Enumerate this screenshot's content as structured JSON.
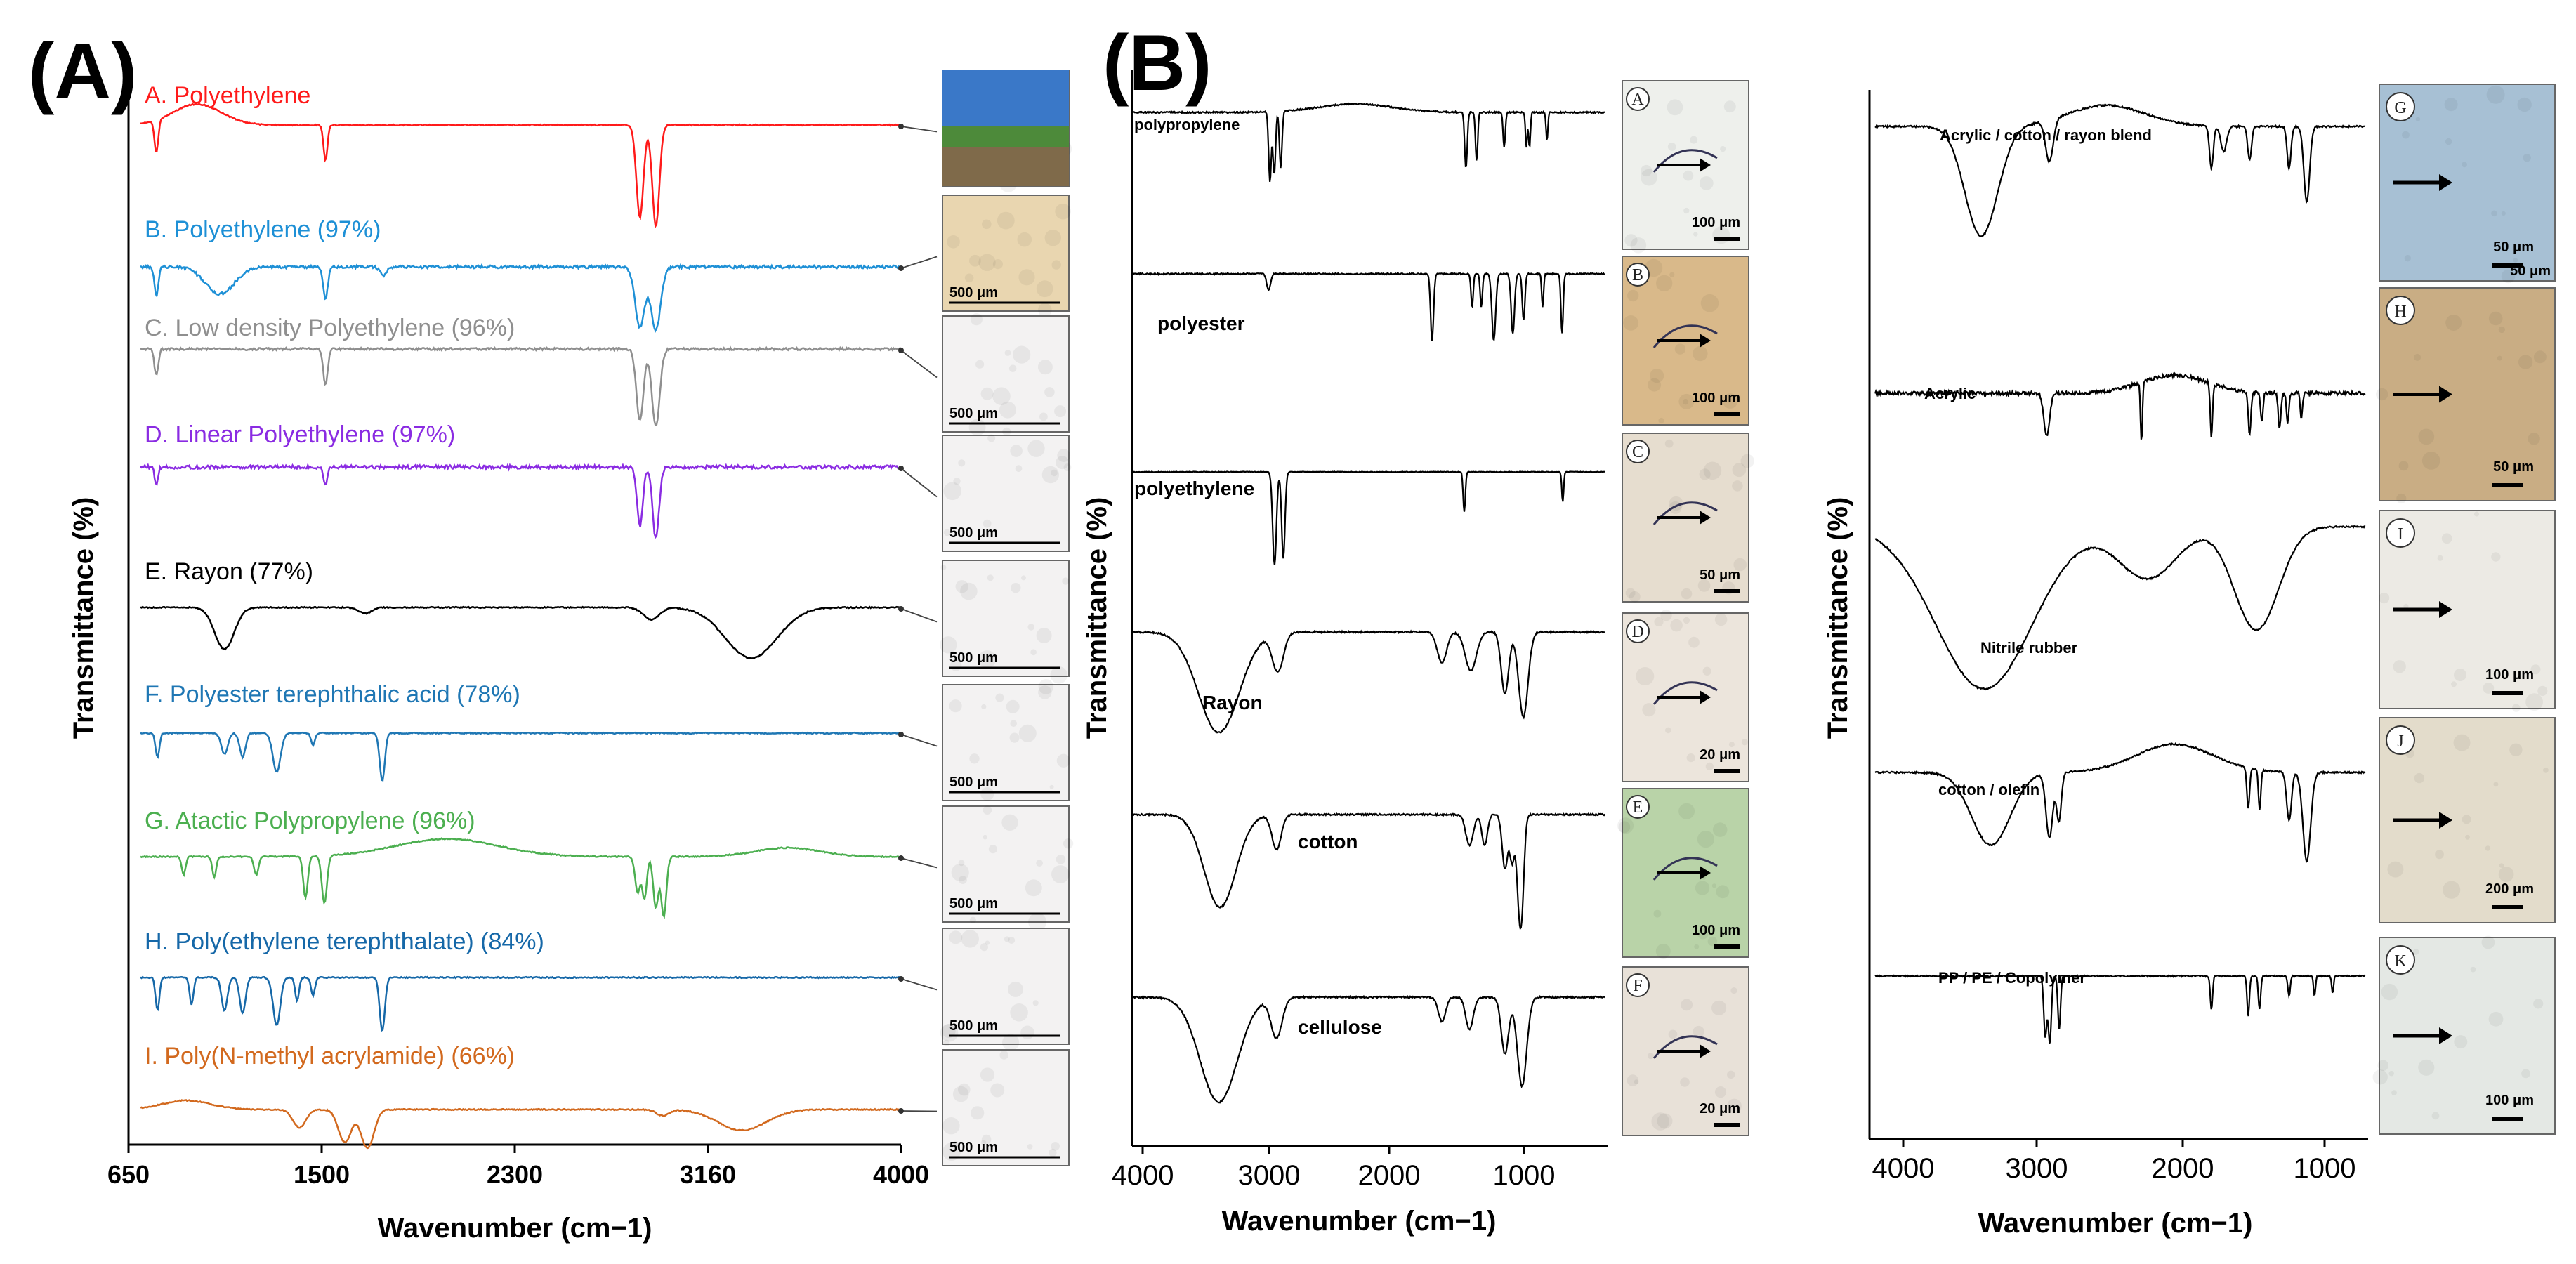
{
  "chart_data": [
    {
      "panel": "(A)",
      "type": "line",
      "xlabel": "Wavenumber (cm−1)",
      "ylabel": "Transmittance (%)",
      "xlim": [
        650,
        4000
      ],
      "x_axis_reversed": false,
      "tick_labels": [
        "650",
        "1500",
        "2300",
        "3160",
        "4000"
      ],
      "series": [
        {
          "name": "A. Polyethylene",
          "color": "#ff1a1a",
          "bands": [
            [
              720,
              0.55,
              12
            ],
            [
              1465,
              0.6,
              12
            ],
            [
              2850,
              1.55,
              22
            ],
            [
              2920,
              1.7,
              22
            ]
          ],
          "humps": [
            [
              900,
              0.35,
              150
            ]
          ],
          "noise": 0.01,
          "micrograph": {
            "scale": ""
          }
        },
        {
          "name": "B. Polyethylene (97%)",
          "color": "#1e90d6",
          "bands": [
            [
              720,
              0.5,
              12
            ],
            [
              1000,
              0.45,
              90
            ],
            [
              1465,
              0.55,
              14
            ],
            [
              1720,
              0.15,
              20
            ],
            [
              2850,
              1.0,
              30
            ],
            [
              2920,
              1.05,
              30
            ]
          ],
          "humps": [],
          "noise": 0.025,
          "micrograph": {
            "scale": "500 μm"
          }
        },
        {
          "name": "C. Low density Polyethylene (96%)",
          "color": "#8f8f8f",
          "bands": [
            [
              720,
              0.45,
              12
            ],
            [
              1465,
              0.6,
              14
            ],
            [
              2850,
              1.2,
              22
            ],
            [
              2920,
              1.3,
              24
            ]
          ],
          "humps": [],
          "noise": 0.02,
          "micrograph": {
            "scale": "500 μm"
          }
        },
        {
          "name": "D. Linear Polyethylene (97%)",
          "color": "#8a2be2",
          "bands": [
            [
              720,
              0.3,
              10
            ],
            [
              1465,
              0.3,
              12
            ],
            [
              2850,
              1.0,
              18
            ],
            [
              2920,
              1.2,
              20
            ]
          ],
          "humps": [],
          "noise": 0.03,
          "micrograph": {
            "scale": "500 μm"
          }
        },
        {
          "name": "E. Rayon (77%)",
          "color": "#000000",
          "bands": [
            [
              1020,
              0.7,
              60
            ],
            [
              1640,
              0.1,
              40
            ],
            [
              2900,
              0.2,
              50
            ],
            [
              3340,
              0.85,
              160
            ]
          ],
          "humps": [],
          "noise": 0.01,
          "micrograph": {
            "scale": "500 μm"
          }
        },
        {
          "name": "F. Polyester terephthalic acid (78%)",
          "color": "#1f77b4",
          "bands": [
            [
              725,
              0.4,
              12
            ],
            [
              1020,
              0.35,
              20
            ],
            [
              1100,
              0.4,
              18
            ],
            [
              1250,
              0.65,
              24
            ],
            [
              1410,
              0.2,
              12
            ],
            [
              1715,
              0.8,
              16
            ]
          ],
          "humps": [],
          "noise": 0.01,
          "micrograph": {
            "scale": "500 μm"
          }
        },
        {
          "name": "G. Atactic Polypropylene (96%)",
          "color": "#4caf50",
          "bands": [
            [
              840,
              0.3,
              12
            ],
            [
              975,
              0.35,
              12
            ],
            [
              1160,
              0.3,
              14
            ],
            [
              1377,
              0.7,
              14
            ],
            [
              1460,
              0.8,
              16
            ],
            [
              2840,
              0.6,
              16
            ],
            [
              2870,
              0.7,
              14
            ],
            [
              2920,
              0.85,
              16
            ],
            [
              2955,
              1.0,
              16
            ]
          ],
          "humps": [
            [
              2000,
              0.3,
              320
            ],
            [
              3500,
              0.15,
              200
            ]
          ],
          "noise": 0.01,
          "micrograph": {
            "scale": "500 μm"
          }
        },
        {
          "name": "H. Poly(ethylene terephthalate) (84%)",
          "color": "#1668a8",
          "bands": [
            [
              725,
              0.55,
              12
            ],
            [
              875,
              0.45,
              12
            ],
            [
              1020,
              0.55,
              18
            ],
            [
              1100,
              0.6,
              18
            ],
            [
              1250,
              0.8,
              22
            ],
            [
              1340,
              0.4,
              12
            ],
            [
              1410,
              0.3,
              12
            ],
            [
              1715,
              0.9,
              16
            ]
          ],
          "humps": [],
          "noise": 0.01,
          "micrograph": {
            "scale": "500 μm"
          }
        },
        {
          "name": "I. Poly(N-methyl acrylamide) (66%)",
          "color": "#d2691e",
          "bands": [
            [
              1350,
              0.3,
              40
            ],
            [
              1550,
              0.55,
              40
            ],
            [
              1650,
              0.65,
              40
            ],
            [
              2950,
              0.1,
              40
            ],
            [
              3300,
              0.35,
              150
            ]
          ],
          "humps": [
            [
              850,
              0.15,
              150
            ]
          ],
          "noise": 0.01,
          "micrograph": {
            "scale": "500 μm"
          }
        }
      ]
    },
    {
      "panel": "(B)",
      "type": "line",
      "xlabel": "Wavenumber (cm−1)",
      "ylabel": "Transmittance (%)",
      "xlim": [
        4000,
        400
      ],
      "x_axis_reversed": true,
      "tick_labels": [
        "4000",
        "3000",
        "2000",
        "1000"
      ],
      "series": [
        {
          "name": "polypropylene",
          "color": "#000000",
          "bands": [
            [
              2950,
              1.0,
              14
            ],
            [
              2917,
              0.9,
              14
            ],
            [
              2868,
              0.8,
              14
            ],
            [
              1457,
              0.8,
              14
            ],
            [
              1376,
              0.7,
              12
            ],
            [
              1166,
              0.5,
              12
            ],
            [
              997,
              0.5,
              10
            ],
            [
              973,
              0.5,
              10
            ],
            [
              840,
              0.4,
              10
            ]
          ],
          "humps": [
            [
              2300,
              0.12,
              400
            ]
          ],
          "noise": 0.01,
          "micrograph": {
            "letter": "A",
            "scale": "100 μm"
          }
        },
        {
          "name": "polyester",
          "color": "#000000",
          "bands": [
            [
              2960,
              0.25,
              20
            ],
            [
              1715,
              1.0,
              16
            ],
            [
              1410,
              0.5,
              12
            ],
            [
              1340,
              0.5,
              12
            ],
            [
              1245,
              1.0,
              20
            ],
            [
              1100,
              0.9,
              18
            ],
            [
              1018,
              0.7,
              14
            ],
            [
              873,
              0.5,
              10
            ],
            [
              725,
              0.9,
              12
            ]
          ],
          "humps": [],
          "noise": 0.01,
          "micrograph": {
            "letter": "B",
            "scale": "100 μm"
          }
        },
        {
          "name": "polyethylene",
          "color": "#000000",
          "bands": [
            [
              2915,
              1.4,
              20
            ],
            [
              2848,
              1.3,
              18
            ],
            [
              1470,
              0.6,
              12
            ],
            [
              720,
              0.45,
              10
            ]
          ],
          "humps": [],
          "noise": 0.005,
          "micrograph": {
            "letter": "C",
            "scale": "50 μm"
          }
        },
        {
          "name": "Rayon",
          "color": "#000000",
          "bands": [
            [
              3340,
              1.3,
              220
            ],
            [
              2890,
              0.5,
              60
            ],
            [
              1640,
              0.4,
              50
            ],
            [
              1420,
              0.5,
              60
            ],
            [
              1160,
              0.8,
              40
            ],
            [
              1020,
              1.1,
              50
            ]
          ],
          "humps": [],
          "noise": 0.01,
          "micrograph": {
            "letter": "D",
            "scale": "20 μm"
          }
        },
        {
          "name": "cotton",
          "color": "#000000",
          "bands": [
            [
              3330,
              1.2,
              170
            ],
            [
              2900,
              0.45,
              50
            ],
            [
              1430,
              0.4,
              40
            ],
            [
              1315,
              0.4,
              30
            ],
            [
              1160,
              0.7,
              30
            ],
            [
              1105,
              0.6,
              25
            ],
            [
              1055,
              0.9,
              25
            ],
            [
              1030,
              1.0,
              25
            ]
          ],
          "humps": [],
          "noise": 0.01,
          "micrograph": {
            "letter": "E",
            "scale": "100 μm"
          }
        },
        {
          "name": "cellulose",
          "color": "#000000",
          "bands": [
            [
              3340,
              1.3,
              200
            ],
            [
              2900,
              0.5,
              60
            ],
            [
              1640,
              0.3,
              40
            ],
            [
              1430,
              0.4,
              40
            ],
            [
              1160,
              0.7,
              40
            ],
            [
              1030,
              1.1,
              50
            ]
          ],
          "humps": [],
          "noise": 0.01,
          "micrograph": {
            "letter": "F",
            "scale": "20 μm"
          }
        }
      ]
    },
    {
      "panel": "(B)",
      "type": "line",
      "xlabel": "Wavenumber (cm−1)",
      "ylabel": "Transmittance (%)",
      "xlim": [
        4200,
        600
      ],
      "x_axis_reversed": true,
      "tick_labels": [
        "4000",
        "3000",
        "2000",
        "1000"
      ],
      "series": [
        {
          "name": "Acrylic / cotton / rayon blend",
          "color": "#000000",
          "bands": [
            [
              3420,
              1.3,
              170
            ],
            [
              2920,
              0.5,
              40
            ],
            [
              1730,
              0.5,
              20
            ],
            [
              1640,
              0.3,
              30
            ],
            [
              1450,
              0.4,
              20
            ],
            [
              1160,
              0.5,
              20
            ],
            [
              1030,
              0.9,
              30
            ]
          ],
          "humps": [
            [
              2500,
              0.25,
              400
            ]
          ],
          "noise": 0.01,
          "micrograph": {
            "letter": "G",
            "scale": "50 μm",
            "scale2": "50 μm"
          }
        },
        {
          "name": "Acrylic",
          "color": "#000000",
          "bands": [
            [
              2940,
              0.7,
              30
            ],
            [
              2244,
              1.0,
              10
            ],
            [
              1730,
              0.9,
              12
            ],
            [
              1450,
              0.7,
              14
            ],
            [
              1360,
              0.5,
              12
            ],
            [
              1230,
              0.6,
              14
            ],
            [
              1170,
              0.5,
              12
            ],
            [
              1070,
              0.4,
              12
            ]
          ],
          "humps": [
            [
              2000,
              0.3,
              350
            ]
          ],
          "noise": 0.03,
          "micrograph": {
            "letter": "H",
            "scale": "50 μm"
          }
        },
        {
          "name": "Nitrile rubber",
          "color": "#000000",
          "bands": [
            [
              3400,
              2.2,
              500
            ],
            [
              1400,
              1.4,
              230
            ],
            [
              2200,
              0.7,
              300
            ]
          ],
          "humps": [],
          "noise": 0.01,
          "micrograph": {
            "letter": "I",
            "scale": "100 μm"
          }
        },
        {
          "name": "cotton / olefin",
          "color": "#000000",
          "bands": [
            [
              3350,
              0.9,
              200
            ],
            [
              2920,
              0.8,
              35
            ],
            [
              2850,
              0.6,
              25
            ],
            [
              1460,
              0.5,
              14
            ],
            [
              1376,
              0.5,
              12
            ],
            [
              1160,
              0.6,
              25
            ],
            [
              1030,
              1.1,
              40
            ]
          ],
          "humps": [
            [
              2000,
              0.35,
              400
            ]
          ],
          "noise": 0.01,
          "micrograph": {
            "letter": "J",
            "scale": "200 μm"
          }
        },
        {
          "name": "PP / PE / Copolymer",
          "color": "#000000",
          "bands": [
            [
              2950,
              0.9,
              16
            ],
            [
              2917,
              1.0,
              16
            ],
            [
              2848,
              0.8,
              14
            ],
            [
              1730,
              0.5,
              12
            ],
            [
              1460,
              0.6,
              12
            ],
            [
              1377,
              0.5,
              12
            ],
            [
              1160,
              0.3,
              12
            ],
            [
              973,
              0.3,
              10
            ],
            [
              840,
              0.25,
              10
            ]
          ],
          "humps": [],
          "noise": 0.01,
          "micrograph": {
            "letter": "K",
            "scale": "100 μm"
          }
        }
      ]
    }
  ],
  "labels": {
    "panel_a": "(A)",
    "panel_b": "(B)"
  }
}
